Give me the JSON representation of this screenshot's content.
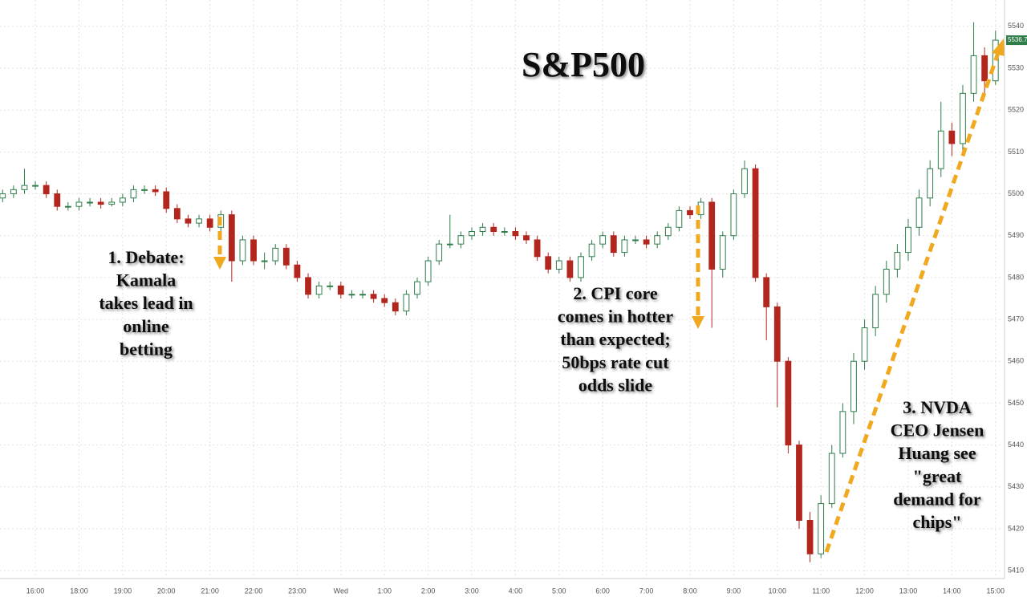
{
  "chart_data": {
    "type": "candlestick",
    "title": "S&P500",
    "annotations": [
      [
        "1. Debate:",
        "Kamala",
        "takes lead in",
        "online",
        "betting"
      ],
      [
        "2. CPI core",
        "comes in hotter",
        "than expected;",
        "50bps rate cut",
        "odds slide"
      ],
      [
        "3. NVDA",
        "CEO Jensen",
        "Huang see",
        "\"great",
        "demand for",
        "chips\""
      ]
    ],
    "up_color": "#2f7d4a",
    "down_color": "#b3261e",
    "grid": true,
    "xlim": [
      -0.81,
      22.17
    ],
    "ylim": [
      5408.1,
      5546.3
    ],
    "xticks": [
      {
        "value": 0,
        "label": "16:00"
      },
      {
        "value": 1,
        "label": "18:00"
      },
      {
        "value": 2,
        "label": "19:00"
      },
      {
        "value": 3,
        "label": "20:00"
      },
      {
        "value": 4,
        "label": "21:00"
      },
      {
        "value": 5,
        "label": "22:00"
      },
      {
        "value": 6,
        "label": "23:00"
      },
      {
        "value": 7,
        "label": "Wed"
      },
      {
        "value": 8,
        "label": "1:00"
      },
      {
        "value": 9,
        "label": "2:00"
      },
      {
        "value": 10,
        "label": "3:00"
      },
      {
        "value": 11,
        "label": "4:00"
      },
      {
        "value": 12,
        "label": "5:00"
      },
      {
        "value": 13,
        "label": "6:00"
      },
      {
        "value": 14,
        "label": "7:00"
      },
      {
        "value": 15,
        "label": "8:00"
      },
      {
        "value": 16,
        "label": "9:00"
      },
      {
        "value": 17,
        "label": "10:00"
      },
      {
        "value": 18,
        "label": "11:00"
      },
      {
        "value": 19,
        "label": "12:00"
      },
      {
        "value": 20,
        "label": "13:00"
      },
      {
        "value": 21,
        "label": "14:00"
      },
      {
        "value": 22,
        "label": "15:00"
      }
    ],
    "yticks": [
      5410,
      5420,
      5430,
      5440,
      5450,
      5460,
      5470,
      5480,
      5490,
      5500,
      5510,
      5520,
      5530,
      5540
    ],
    "x": [
      -0.75,
      -0.5,
      -0.25,
      0,
      0.25,
      0.5,
      0.75,
      1,
      1.25,
      1.5,
      1.75,
      2,
      2.25,
      2.5,
      2.75,
      3,
      3.25,
      3.5,
      3.75,
      4,
      4.25,
      4.5,
      4.75,
      5,
      5.25,
      5.5,
      5.75,
      6,
      6.25,
      6.5,
      6.75,
      7,
      7.25,
      7.5,
      7.75,
      8,
      8.25,
      8.5,
      8.75,
      9,
      9.25,
      9.5,
      9.75,
      10,
      10.25,
      10.5,
      10.75,
      11,
      11.25,
      11.5,
      11.75,
      12,
      12.25,
      12.5,
      12.75,
      13,
      13.25,
      13.5,
      13.75,
      14,
      14.25,
      14.5,
      14.75,
      15,
      15.25,
      15.5,
      15.75,
      16,
      16.25,
      16.5,
      16.75,
      17,
      17.25,
      17.5,
      17.75,
      18,
      18.25,
      18.5,
      18.75,
      19,
      19.25,
      19.5,
      19.75,
      20,
      20.25,
      20.5,
      20.75,
      21,
      21.25,
      21.5,
      21.75,
      22
    ],
    "open": [
      5499,
      5500,
      5501,
      5502,
      5502,
      5500,
      5497,
      5497,
      5498,
      5498,
      5497.5,
      5498,
      5499,
      5501,
      5501,
      5500.5,
      5496.5,
      5494,
      5493,
      5494,
      5492,
      5495,
      5484,
      5489,
      5484,
      5484,
      5487,
      5483,
      5480,
      5476,
      5478,
      5478,
      5476,
      5476,
      5476,
      5475,
      5474,
      5472,
      5476,
      5479,
      5484,
      5488,
      5488,
      5490,
      5491,
      5492,
      5491,
      5491,
      5490,
      5489,
      5485,
      5482,
      5484,
      5480,
      5485,
      5488,
      5490,
      5486,
      5489,
      5489,
      5488,
      5490,
      5492,
      5496,
      5495,
      5498,
      5482,
      5490,
      5500,
      5506,
      5480,
      5473,
      5460,
      5440,
      5422,
      5414,
      5426,
      5438,
      5448,
      5460,
      5468,
      5476,
      5482,
      5486,
      5492,
      5499,
      5506,
      5515,
      5512,
      5524,
      5533,
      5527
    ],
    "high": [
      5501,
      5502,
      5506,
      5503,
      5503,
      5501,
      5498,
      5499,
      5499,
      5499,
      5499,
      5500,
      5502,
      5502,
      5502,
      5501.5,
      5497.5,
      5495,
      5495,
      5495,
      5496,
      5496,
      5490,
      5490,
      5486,
      5488,
      5488,
      5484,
      5481,
      5479,
      5479,
      5479,
      5477,
      5477,
      5477,
      5476,
      5475,
      5477,
      5480,
      5485,
      5489,
      5495,
      5491,
      5492,
      5493,
      5493,
      5492,
      5492,
      5491,
      5490,
      5486,
      5485,
      5485,
      5486,
      5489,
      5491,
      5491,
      5490,
      5490,
      5490,
      5491,
      5493,
      5497,
      5497,
      5499,
      5499,
      5491,
      5501,
      5508,
      5507,
      5481,
      5474,
      5461,
      5441,
      5424,
      5428,
      5440,
      5450,
      5462,
      5470,
      5478,
      5484,
      5488,
      5494,
      5501,
      5508,
      5522,
      5517,
      5526,
      5541,
      5535,
      5539
    ],
    "low": [
      5498,
      5499,
      5500,
      5501,
      5499,
      5496,
      5496,
      5496,
      5497,
      5496.5,
      5497,
      5497,
      5498,
      5500,
      5499.5,
      5495.5,
      5493,
      5492,
      5492,
      5491,
      5491,
      5479,
      5483,
      5483,
      5482,
      5483,
      5482,
      5479,
      5475,
      5475,
      5477,
      5475,
      5475,
      5475,
      5474,
      5473,
      5471,
      5471,
      5475,
      5478,
      5483,
      5487,
      5487,
      5489,
      5490,
      5490,
      5490,
      5489,
      5488,
      5484,
      5481,
      5481,
      5479,
      5479,
      5484,
      5487,
      5485,
      5485,
      5488,
      5487,
      5487,
      5489,
      5491,
      5494,
      5494,
      5468,
      5480,
      5489,
      5499,
      5479,
      5465,
      5449,
      5438,
      5420,
      5412,
      5413,
      5425,
      5437,
      5445,
      5458,
      5466,
      5474,
      5480,
      5484,
      5490,
      5497,
      5504,
      5509,
      5510,
      5522,
      5524,
      5526
    ],
    "close": [
      5500,
      5501,
      5502,
      5502,
      5500,
      5497,
      5497,
      5498,
      5498,
      5497.5,
      5498,
      5499,
      5501,
      5501,
      5500.5,
      5496.5,
      5494,
      5493,
      5494,
      5492,
      5495,
      5484,
      5489,
      5484,
      5484,
      5487,
      5483,
      5480,
      5476,
      5478,
      5478,
      5476,
      5476,
      5476,
      5475,
      5474,
      5472,
      5476,
      5479,
      5484,
      5488,
      5488,
      5490,
      5491,
      5492,
      5491,
      5491,
      5490,
      5489,
      5485,
      5482,
      5484,
      5480,
      5485,
      5488,
      5490,
      5486,
      5489,
      5489,
      5488,
      5490,
      5492,
      5496,
      5495,
      5498,
      5482,
      5490,
      5500,
      5506,
      5480,
      5473,
      5460,
      5440,
      5422,
      5414,
      5426,
      5438,
      5448,
      5460,
      5468,
      5476,
      5482,
      5486,
      5492,
      5499,
      5506,
      5515,
      5512,
      5524,
      5533,
      5527,
      5536.7
    ]
  }
}
